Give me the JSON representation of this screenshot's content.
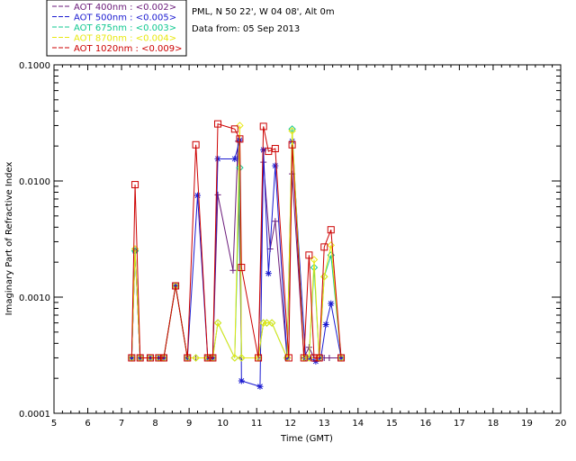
{
  "chart_data": {
    "type": "line",
    "title": "PML, N 50 22', W 04 08', Alt 0m",
    "subtitle": "Data from: 05 Sep 2013",
    "xlabel": "Time (GMT)",
    "ylabel": "Imaginary Part of Refractive Index",
    "xlim": [
      5,
      20
    ],
    "ylim": [
      0.0001,
      0.1
    ],
    "yscale": "log",
    "grid": false,
    "legend_position": "top-left, outside plot",
    "xticks": [
      "5",
      "6",
      "7",
      "8",
      "9",
      "10",
      "11",
      "12",
      "13",
      "14",
      "15",
      "16",
      "17",
      "18",
      "19",
      "20"
    ],
    "yticks": [
      {
        "value": 0.0001,
        "label": "0.0001"
      },
      {
        "value": 0.001,
        "label": "0.0010"
      },
      {
        "value": 0.01,
        "label": "0.0100"
      },
      {
        "value": 0.1,
        "label": "0.1000"
      }
    ],
    "series": [
      {
        "name": "AOT  400nm : <0.002>",
        "color": "#6a1a7a",
        "marker": "plus",
        "x": [
          7.3,
          7.4,
          7.55,
          7.85,
          8.1,
          8.25,
          8.6,
          8.95,
          9.2,
          9.55,
          9.7,
          9.85,
          10.3,
          10.45,
          10.55,
          11.05,
          11.2,
          11.4,
          11.55,
          11.9,
          12.05,
          12.4,
          12.55,
          12.7,
          12.85,
          13.0,
          13.15,
          13.5
        ],
        "y": [
          0.0003,
          0.0025,
          0.0003,
          0.0003,
          0.0003,
          0.0003,
          0.00125,
          0.0003,
          0.0003,
          0.0003,
          0.0003,
          0.0076,
          0.0017,
          0.022,
          0.0003,
          0.0003,
          0.0145,
          0.0026,
          0.0045,
          0.0003,
          0.0115,
          0.0003,
          0.00037,
          0.0003,
          0.0003,
          0.0003,
          0.0003,
          0.0003
        ]
      },
      {
        "name": "AOT  500nm : <0.005>",
        "color": "#1a1ad0",
        "marker": "asterisk",
        "x": [
          7.3,
          7.4,
          7.55,
          7.85,
          8.1,
          8.25,
          8.6,
          8.95,
          9.25,
          9.55,
          9.7,
          9.85,
          10.35,
          10.5,
          10.55,
          11.1,
          11.2,
          11.35,
          11.55,
          11.9,
          12.05,
          12.45,
          12.55,
          12.75,
          12.9,
          13.05,
          13.2,
          13.5
        ],
        "y": [
          0.0003,
          0.0025,
          0.0003,
          0.0003,
          0.0003,
          0.0003,
          0.00125,
          0.0003,
          0.0075,
          0.0003,
          0.0003,
          0.0155,
          0.0155,
          0.0225,
          0.00019,
          0.00017,
          0.0185,
          0.0016,
          0.0135,
          0.0003,
          0.022,
          0.0003,
          0.0003,
          0.00028,
          0.0003,
          0.00058,
          0.00088,
          0.0003
        ]
      },
      {
        "name": "AOT  675nm : <0.003>",
        "color": "#10c890",
        "marker": "diamond",
        "x": [
          7.3,
          7.4,
          7.55,
          7.85,
          8.1,
          8.25,
          8.6,
          8.95,
          9.2,
          9.55,
          9.7,
          9.85,
          10.35,
          10.5,
          10.55,
          11.05,
          11.2,
          11.3,
          11.45,
          11.9,
          12.05,
          12.4,
          12.55,
          12.7,
          12.85,
          13.0,
          13.2,
          13.5
        ],
        "y": [
          0.0003,
          0.0025,
          0.0003,
          0.0003,
          0.0003,
          0.0003,
          0.00125,
          0.0003,
          0.0003,
          0.0003,
          0.0003,
          0.0006,
          0.0003,
          0.013,
          0.0003,
          0.0003,
          0.0006,
          0.0006,
          0.0006,
          0.0003,
          0.028,
          0.0003,
          0.0003,
          0.0018,
          0.0003,
          0.0015,
          0.0023,
          0.0003
        ]
      },
      {
        "name": "AOT  870nm : <0.004>",
        "color": "#e8e810",
        "marker": "diamond",
        "x": [
          7.3,
          7.4,
          7.55,
          7.85,
          8.1,
          8.25,
          8.6,
          8.95,
          9.2,
          9.55,
          9.7,
          9.85,
          10.35,
          10.5,
          10.55,
          11.05,
          11.2,
          11.3,
          11.45,
          11.9,
          12.05,
          12.4,
          12.55,
          12.7,
          12.85,
          13.0,
          13.2,
          13.5
        ],
        "y": [
          0.0003,
          0.0026,
          0.0003,
          0.0003,
          0.0003,
          0.0003,
          0.00125,
          0.0003,
          0.0003,
          0.0003,
          0.0003,
          0.0006,
          0.0003,
          0.03,
          0.0003,
          0.0003,
          0.0006,
          0.0006,
          0.0006,
          0.0003,
          0.027,
          0.0003,
          0.0003,
          0.0021,
          0.0003,
          0.0015,
          0.0028,
          0.0003
        ]
      },
      {
        "name": "AOT 1020nm : <0.009>",
        "color": "#cc0000",
        "marker": "square",
        "x": [
          7.3,
          7.4,
          7.55,
          7.85,
          8.1,
          8.25,
          8.6,
          8.95,
          9.2,
          9.55,
          9.7,
          9.85,
          10.35,
          10.5,
          10.55,
          11.05,
          11.2,
          11.35,
          11.55,
          11.95,
          12.05,
          12.4,
          12.55,
          12.7,
          12.85,
          13.0,
          13.2,
          13.5
        ],
        "y": [
          0.0003,
          0.0093,
          0.0003,
          0.0003,
          0.0003,
          0.0003,
          0.00125,
          0.0003,
          0.0205,
          0.0003,
          0.0003,
          0.031,
          0.028,
          0.023,
          0.0018,
          0.0003,
          0.0295,
          0.018,
          0.019,
          0.0003,
          0.0205,
          0.0003,
          0.0023,
          0.0003,
          0.0003,
          0.0027,
          0.0038,
          0.0003
        ]
      }
    ]
  }
}
